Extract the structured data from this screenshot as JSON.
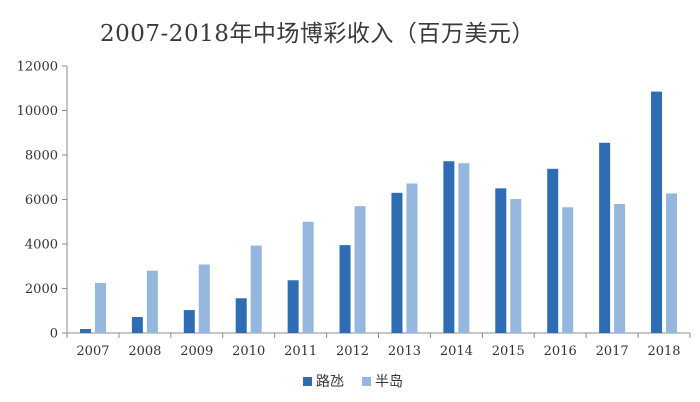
{
  "chart_data": {
    "type": "bar",
    "title": "2007-2018年中场博彩收入（百万美元）",
    "xlabel": "",
    "ylabel": "",
    "ylim": [
      0,
      12000
    ],
    "yticks": [
      0,
      2000,
      4000,
      6000,
      8000,
      10000,
      12000
    ],
    "grid": false,
    "legend_position": "bottom",
    "categories": [
      "2007",
      "2008",
      "2009",
      "2010",
      "2011",
      "2012",
      "2013",
      "2014",
      "2015",
      "2016",
      "2017",
      "2018"
    ],
    "series": [
      {
        "name": "路氹",
        "color": "#2e6db4",
        "values": [
          180,
          720,
          1030,
          1560,
          2370,
          3950,
          6300,
          7720,
          6500,
          7380,
          8550,
          10850
        ]
      },
      {
        "name": "半岛",
        "color": "#95b7de",
        "values": [
          2250,
          2800,
          3080,
          3930,
          5000,
          5700,
          6720,
          7630,
          6020,
          5650,
          5800,
          6270
        ]
      }
    ]
  }
}
